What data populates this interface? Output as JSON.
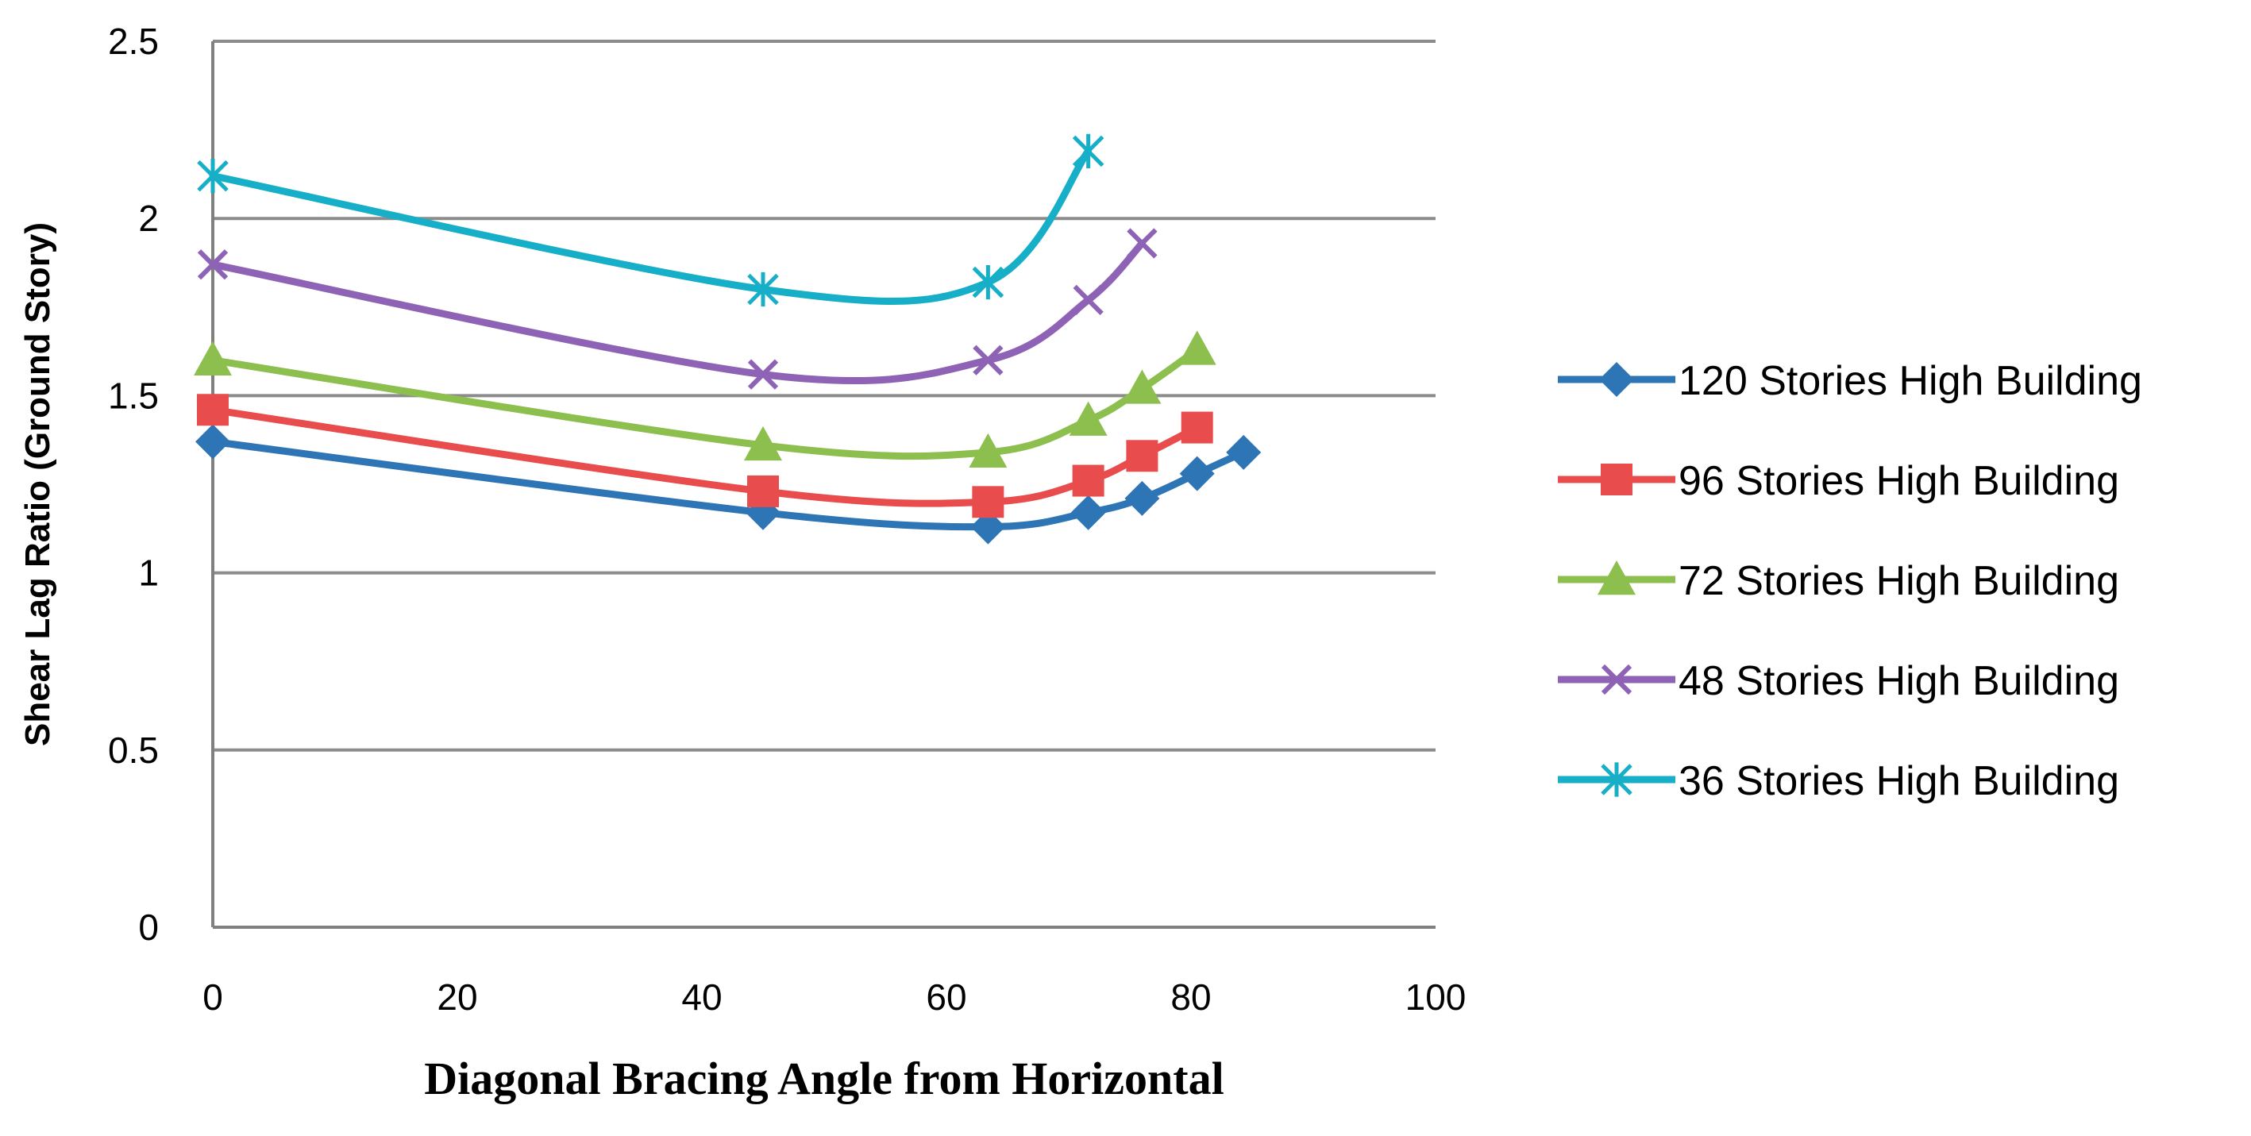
{
  "chart_data": {
    "type": "line",
    "title": "",
    "xlabel": "Diagonal Bracing Angle from Horizontal",
    "ylabel": "Shear Lag Ratio (Ground Story)",
    "xlim": [
      0,
      100
    ],
    "ylim": [
      0,
      2.5
    ],
    "xticks": [
      0,
      20,
      40,
      60,
      80,
      100
    ],
    "yticks": [
      0,
      0.5,
      1,
      1.5,
      2,
      2.5
    ],
    "xtick_labels": [
      "0",
      "20",
      "40",
      "60",
      "80",
      "100"
    ],
    "ytick_labels": [
      "0",
      "0.5",
      "1",
      "1.5",
      "2",
      "2.5"
    ],
    "grid": "horizontal",
    "legend_position": "right",
    "series": [
      {
        "name": "120 Stories High Building",
        "color": "#2E75B6",
        "marker": "diamond",
        "x": [
          0,
          45,
          63.4,
          71.6,
          76,
          80.5,
          84.3
        ],
        "y": [
          1.37,
          1.17,
          1.13,
          1.17,
          1.21,
          1.28,
          1.34
        ]
      },
      {
        "name": "96 Stories High Building",
        "color": "#E84C4C",
        "marker": "square",
        "x": [
          0,
          45,
          63.4,
          71.6,
          76,
          80.5
        ],
        "y": [
          1.46,
          1.23,
          1.2,
          1.26,
          1.33,
          1.41
        ]
      },
      {
        "name": "72 Stories High Building",
        "color": "#8CBF4E",
        "marker": "triangle",
        "x": [
          0,
          45,
          63.4,
          71.6,
          76,
          80.5
        ],
        "y": [
          1.6,
          1.36,
          1.34,
          1.43,
          1.52,
          1.63
        ]
      },
      {
        "name": "48 Stories High Building",
        "color": "#8E62B5",
        "marker": "x",
        "x": [
          0,
          45,
          63.4,
          71.6,
          76
        ],
        "y": [
          1.87,
          1.56,
          1.6,
          1.77,
          1.93
        ]
      },
      {
        "name": "36 Stories High Building",
        "color": "#17AFC8",
        "marker": "asterisk",
        "x": [
          0,
          45,
          63.4,
          71.6
        ],
        "y": [
          2.12,
          1.8,
          1.82,
          2.19
        ]
      }
    ]
  }
}
